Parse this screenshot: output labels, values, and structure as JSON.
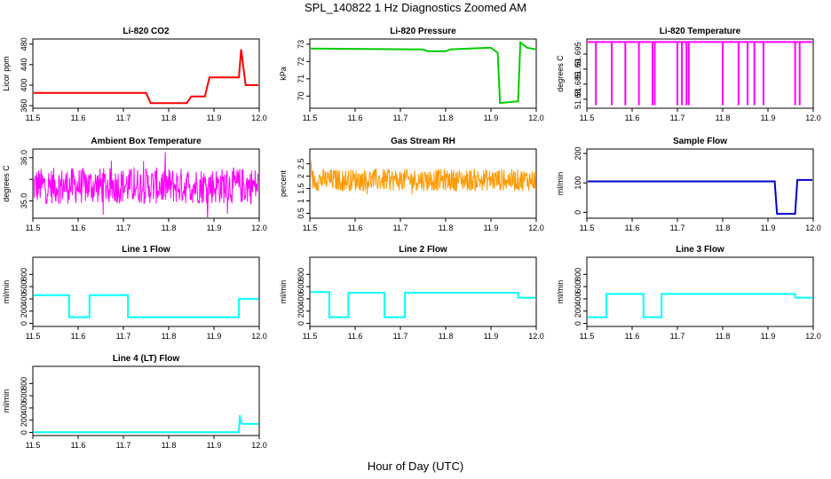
{
  "title": "SPL_140822  1 Hz Diagnostics Zoomed AM",
  "xlabel": "Hour of Day (UTC)",
  "chart_data": [
    {
      "type": "line",
      "title": "Li-820 CO2",
      "ylabel": "Licor ppm",
      "color": "#ff0000",
      "xlim": [
        11.5,
        12.0
      ],
      "xticks": [
        "11.5",
        "11.6",
        "11.7",
        "11.8",
        "11.9",
        "12.0"
      ],
      "ylim": [
        355,
        490
      ],
      "yticks": [
        360,
        400,
        440,
        480
      ],
      "series": [
        {
          "x": [
            11.5,
            11.75,
            11.76,
            11.84,
            11.85,
            11.88,
            11.89,
            11.955,
            11.96,
            11.97,
            12.0
          ],
          "y": [
            385,
            385,
            365,
            365,
            378,
            378,
            415,
            415,
            470,
            400,
            400
          ]
        }
      ]
    },
    {
      "type": "line",
      "title": "Li-820 Pressure",
      "ylabel": "kPa",
      "color": "#00cc00",
      "xlim": [
        11.5,
        12.0
      ],
      "xticks": [
        "11.5",
        "11.6",
        "11.7",
        "11.8",
        "11.9",
        "12.0"
      ],
      "ylim": [
        69.3,
        73.3
      ],
      "yticks": [
        70,
        71,
        72,
        73
      ],
      "series": [
        {
          "x": [
            11.5,
            11.75,
            11.76,
            11.8,
            11.81,
            11.9,
            11.915,
            11.92,
            11.96,
            11.965,
            11.98,
            12.0
          ],
          "y": [
            72.75,
            72.7,
            72.6,
            72.6,
            72.7,
            72.8,
            72.5,
            69.6,
            69.7,
            73.1,
            72.8,
            72.7
          ]
        }
      ]
    },
    {
      "type": "line",
      "title": "Li-820 Temperature",
      "ylabel": "degrees C",
      "color": "#ff00ff",
      "xlim": [
        11.5,
        12.0
      ],
      "xticks": [
        "11.5",
        "11.6",
        "11.7",
        "11.8",
        "11.9",
        "12.0"
      ],
      "ylim": [
        51.677,
        51.7
      ],
      "yticks": [
        51.68,
        51.685,
        51.69,
        51.695
      ],
      "series": [
        {
          "x": [
            11.5,
            12.0
          ],
          "y": [
            51.699,
            51.699
          ]
        }
      ],
      "drops": {
        "to": 51.678,
        "x": [
          11.52,
          11.555,
          11.585,
          11.615,
          11.645,
          11.65,
          11.7,
          11.71,
          11.72,
          11.725,
          11.8,
          11.835,
          11.855,
          11.87,
          11.89,
          11.96,
          11.97
        ]
      }
    },
    {
      "type": "line",
      "title": "Ambient Box Temperature",
      "ylabel": "degrees C",
      "color": "#ff00ff",
      "xlim": [
        11.5,
        12.0
      ],
      "xticks": [
        "11.5",
        "11.6",
        "11.7",
        "11.8",
        "11.9",
        "12.0"
      ],
      "ylim": [
        34.6,
        36.2
      ],
      "yticks": [
        35.0,
        35.5,
        36.0
      ],
      "ytick_labels": [
        "35.0",
        "",
        "36.0"
      ],
      "noise": {
        "center": 35.35,
        "amp": 0.42
      }
    },
    {
      "type": "line",
      "title": "Gas Stream RH",
      "ylabel": "percent",
      "color": "#ff9900",
      "xlim": [
        11.5,
        12.0
      ],
      "xticks": [
        "11.5",
        "11.6",
        "11.7",
        "11.8",
        "11.9",
        "12.0"
      ],
      "ylim": [
        0.3,
        3.1
      ],
      "yticks": [
        0.5,
        1.0,
        1.5,
        2.0,
        2.5
      ],
      "noise": {
        "center": 1.85,
        "amp": 0.45
      }
    },
    {
      "type": "line",
      "title": "Sample Flow",
      "ylabel": "ml/min",
      "color": "#0000cc",
      "xlim": [
        11.5,
        12.0
      ],
      "xticks": [
        "11.5",
        "11.6",
        "11.7",
        "11.8",
        "11.9",
        "12.0"
      ],
      "ylim": [
        -20,
        215
      ],
      "yticks": [
        0,
        100,
        200
      ],
      "series": [
        {
          "x": [
            11.5,
            11.915,
            11.92,
            11.96,
            11.965,
            12.0
          ],
          "y": [
            105,
            105,
            -5,
            -5,
            110,
            110
          ]
        }
      ]
    },
    {
      "type": "line",
      "title": "Line 1 Flow",
      "ylabel": "ml/min",
      "color": "#00ffff",
      "xlim": [
        11.5,
        12.0
      ],
      "xticks": [
        "11.5",
        "11.6",
        "11.7",
        "11.8",
        "11.9",
        "12.0"
      ],
      "ylim": [
        -50,
        1080
      ],
      "yticks": [
        0,
        200,
        400,
        600,
        800
      ],
      "series": [
        {
          "x": [
            11.5,
            11.58,
            11.58,
            11.625,
            11.625,
            11.71,
            11.71,
            11.955,
            11.955,
            12.0
          ],
          "y": [
            460,
            460,
            100,
            100,
            460,
            460,
            100,
            100,
            400,
            400
          ]
        }
      ]
    },
    {
      "type": "line",
      "title": "Line 2 Flow",
      "ylabel": "ml/min",
      "color": "#00ffff",
      "xlim": [
        11.5,
        12.0
      ],
      "xticks": [
        "11.5",
        "11.6",
        "11.7",
        "11.8",
        "11.9",
        "12.0"
      ],
      "ylim": [
        -50,
        1080
      ],
      "yticks": [
        0,
        200,
        400,
        600,
        800
      ],
      "series": [
        {
          "x": [
            11.5,
            11.543,
            11.543,
            11.585,
            11.585,
            11.665,
            11.665,
            11.71,
            11.71,
            11.96,
            11.96,
            12.0
          ],
          "y": [
            510,
            510,
            100,
            100,
            500,
            500,
            100,
            100,
            500,
            500,
            420,
            420
          ]
        }
      ]
    },
    {
      "type": "line",
      "title": "Line 3 Flow",
      "ylabel": "ml/min",
      "color": "#00ffff",
      "xlim": [
        11.5,
        12.0
      ],
      "xticks": [
        "11.5",
        "11.6",
        "11.7",
        "11.8",
        "11.9",
        "12.0"
      ],
      "ylim": [
        -50,
        1080
      ],
      "yticks": [
        0,
        200,
        400,
        600,
        800
      ],
      "series": [
        {
          "x": [
            11.5,
            11.543,
            11.543,
            11.625,
            11.625,
            11.665,
            11.665,
            11.96,
            11.96,
            12.0
          ],
          "y": [
            100,
            100,
            480,
            480,
            100,
            100,
            480,
            480,
            420,
            420
          ]
        }
      ]
    },
    {
      "type": "line",
      "title": "Line 4 (LT) Flow",
      "ylabel": "ml/min",
      "color": "#00ffff",
      "xlim": [
        11.5,
        12.0
      ],
      "xticks": [
        "11.5",
        "11.6",
        "11.7",
        "11.8",
        "11.9",
        "12.0"
      ],
      "ylim": [
        -50,
        1080
      ],
      "yticks": [
        0,
        200,
        400,
        600,
        800
      ],
      "series": [
        {
          "x": [
            11.5,
            11.955,
            11.957,
            11.96,
            11.965,
            12.0
          ],
          "y": [
            5,
            5,
            280,
            160,
            140,
            140
          ]
        }
      ]
    }
  ]
}
